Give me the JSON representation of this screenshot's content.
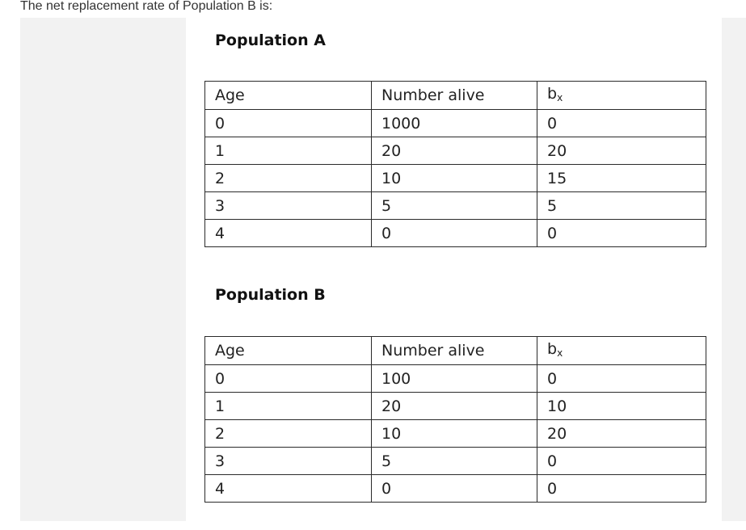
{
  "question": "The net replacement rate of Population B is:",
  "population_a": {
    "title": "Population A",
    "headers": {
      "age": "Age",
      "alive": "Number alive",
      "bx_base": "b",
      "bx_sub": "x"
    },
    "rows": [
      {
        "age": "0",
        "alive": "1000",
        "bx": "0"
      },
      {
        "age": "1",
        "alive": "20",
        "bx": "20"
      },
      {
        "age": "2",
        "alive": "10",
        "bx": "15"
      },
      {
        "age": "3",
        "alive": "5",
        "bx": "5"
      },
      {
        "age": "4",
        "alive": "0",
        "bx": "0"
      }
    ]
  },
  "population_b": {
    "title": "Population B",
    "headers": {
      "age": "Age",
      "alive": "Number alive",
      "bx_base": "b",
      "bx_sub": "x"
    },
    "rows": [
      {
        "age": "0",
        "alive": "100",
        "bx": "0"
      },
      {
        "age": "1",
        "alive": "20",
        "bx": "10"
      },
      {
        "age": "2",
        "alive": "10",
        "bx": "20"
      },
      {
        "age": "3",
        "alive": "5",
        "bx": "0"
      },
      {
        "age": "4",
        "alive": "0",
        "bx": "0"
      }
    ]
  }
}
